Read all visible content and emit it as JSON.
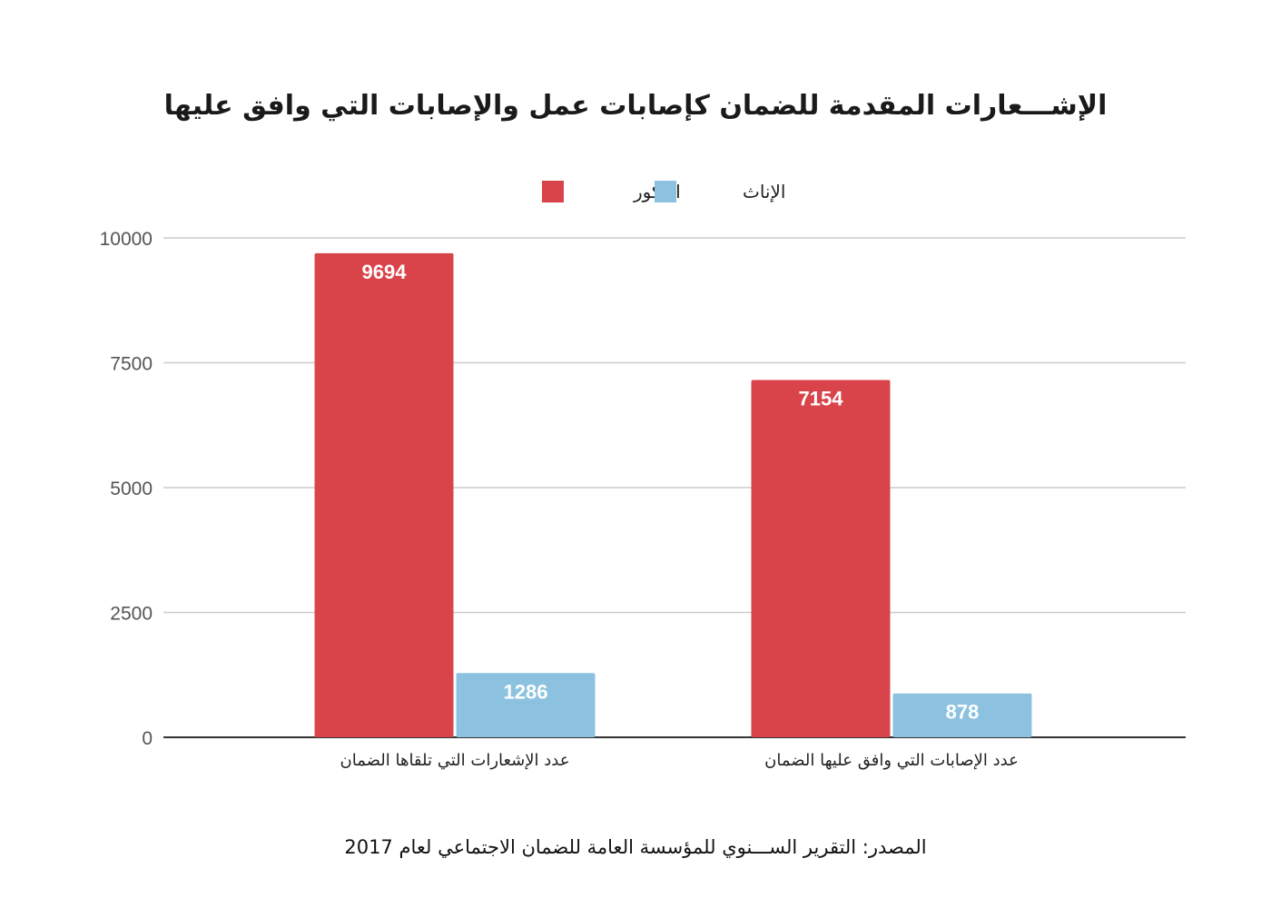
{
  "chart_data": {
    "type": "bar",
    "title": "الإشـــعارات المقدمة للضمان كإصابات عمل والإصابات التي وافق عليها",
    "categories": [
      "عدد الإشعارات التي تلقاها الضمان",
      "عدد الإصابات التي وافق عليها الضمان"
    ],
    "series": [
      {
        "name": "الذكور",
        "color": "#d9444b",
        "values": [
          9694,
          7154
        ]
      },
      {
        "name": "الإناث",
        "color": "#8cc2e0",
        "values": [
          1286,
          878
        ]
      }
    ],
    "yticks": [
      "0",
      "2500",
      "5000",
      "7500",
      "10000"
    ],
    "ylim": [
      0,
      10000
    ],
    "grid": true,
    "legend": "top-center",
    "data_labels": true
  },
  "source": "المصدر: التقرير الســـنوي للمؤسسة العامة للضمان الاجتماعي لعام 2017"
}
